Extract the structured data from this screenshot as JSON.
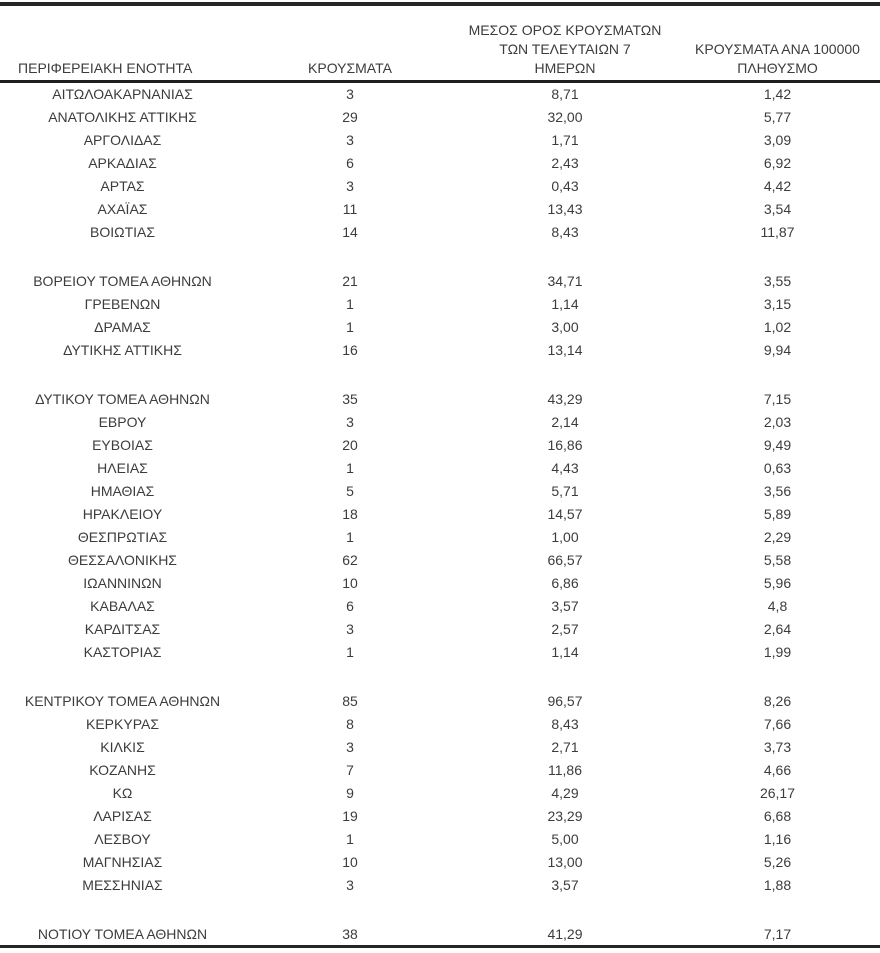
{
  "page": {
    "background_color": "#ffffff",
    "text_color": "#3c3c3c",
    "rule_color": "#262626"
  },
  "table": {
    "column_headers": [
      {
        "id": "region",
        "lines": [
          "ΠΕΡΙΦΕΡΕΙΑΚΗ ΕΝΟΤΗΤΑ"
        ]
      },
      {
        "id": "cases",
        "lines": [
          "ΚΡΟΥΣΜΑΤΑ"
        ]
      },
      {
        "id": "avg7",
        "lines": [
          "ΜΕΣΟΣ ΟΡΟΣ ΚΡΟΥΣΜΑΤΩΝ",
          "ΤΩΝ ΤΕΛΕΥΤΑΙΩΝ 7",
          "ΗΜΕΡΩΝ"
        ]
      },
      {
        "id": "per100k",
        "lines": [
          "ΚΡΟΥΣΜΑΤΑ ΑΝΑ 100000",
          "ΠΛΗΘΥΣΜΟ"
        ]
      }
    ],
    "groups": [
      {
        "rows": [
          {
            "region": "ΑΙΤΩΛΟΑΚΑΡΝΑΝΙΑΣ",
            "cases": "3",
            "avg7": "8,71",
            "per100k": "1,42"
          },
          {
            "region": "ΑΝΑΤΟΛΙΚΗΣ ΑΤΤΙΚΗΣ",
            "cases": "29",
            "avg7": "32,00",
            "per100k": "5,77"
          },
          {
            "region": "ΑΡΓΟΛΙΔΑΣ",
            "cases": "3",
            "avg7": "1,71",
            "per100k": "3,09"
          },
          {
            "region": "ΑΡΚΑΔΙΑΣ",
            "cases": "6",
            "avg7": "2,43",
            "per100k": "6,92"
          },
          {
            "region": "ΑΡΤΑΣ",
            "cases": "3",
            "avg7": "0,43",
            "per100k": "4,42"
          },
          {
            "region": "ΑΧΑΪΑΣ",
            "cases": "11",
            "avg7": "13,43",
            "per100k": "3,54"
          },
          {
            "region": "ΒΟΙΩΤΙΑΣ",
            "cases": "14",
            "avg7": "8,43",
            "per100k": "11,87"
          }
        ]
      },
      {
        "rows": [
          {
            "region": "ΒΟΡΕΙΟΥ ΤΟΜΕΑ ΑΘΗΝΩΝ",
            "cases": "21",
            "avg7": "34,71",
            "per100k": "3,55"
          },
          {
            "region": "ΓΡΕΒΕΝΩΝ",
            "cases": "1",
            "avg7": "1,14",
            "per100k": "3,15"
          },
          {
            "region": "ΔΡΑΜΑΣ",
            "cases": "1",
            "avg7": "3,00",
            "per100k": "1,02"
          },
          {
            "region": "ΔΥΤΙΚΗΣ ΑΤΤΙΚΗΣ",
            "cases": "16",
            "avg7": "13,14",
            "per100k": "9,94"
          }
        ]
      },
      {
        "rows": [
          {
            "region": "ΔΥΤΙΚΟΥ ΤΟΜΕΑ ΑΘΗΝΩΝ",
            "cases": "35",
            "avg7": "43,29",
            "per100k": "7,15"
          },
          {
            "region": "ΕΒΡΟΥ",
            "cases": "3",
            "avg7": "2,14",
            "per100k": "2,03"
          },
          {
            "region": "ΕΥΒΟΙΑΣ",
            "cases": "20",
            "avg7": "16,86",
            "per100k": "9,49"
          },
          {
            "region": "ΗΛΕΙΑΣ",
            "cases": "1",
            "avg7": "4,43",
            "per100k": "0,63"
          },
          {
            "region": "ΗΜΑΘΙΑΣ",
            "cases": "5",
            "avg7": "5,71",
            "per100k": "3,56"
          },
          {
            "region": "ΗΡΑΚΛΕΙΟΥ",
            "cases": "18",
            "avg7": "14,57",
            "per100k": "5,89"
          },
          {
            "region": "ΘΕΣΠΡΩΤΙΑΣ",
            "cases": "1",
            "avg7": "1,00",
            "per100k": "2,29"
          },
          {
            "region": "ΘΕΣΣΑΛΟΝΙΚΗΣ",
            "cases": "62",
            "avg7": "66,57",
            "per100k": "5,58"
          },
          {
            "region": "ΙΩΑΝΝΙΝΩΝ",
            "cases": "10",
            "avg7": "6,86",
            "per100k": "5,96"
          },
          {
            "region": "ΚΑΒΑΛΑΣ",
            "cases": "6",
            "avg7": "3,57",
            "per100k": "4,8"
          },
          {
            "region": "ΚΑΡΔΙΤΣΑΣ",
            "cases": "3",
            "avg7": "2,57",
            "per100k": "2,64"
          },
          {
            "region": "ΚΑΣΤΟΡΙΑΣ",
            "cases": "1",
            "avg7": "1,14",
            "per100k": "1,99"
          }
        ]
      },
      {
        "rows": [
          {
            "region": "ΚΕΝΤΡΙΚΟΥ ΤΟΜΕΑ ΑΘΗΝΩΝ",
            "cases": "85",
            "avg7": "96,57",
            "per100k": "8,26"
          },
          {
            "region": "ΚΕΡΚΥΡΑΣ",
            "cases": "8",
            "avg7": "8,43",
            "per100k": "7,66"
          },
          {
            "region": "ΚΙΛΚΙΣ",
            "cases": "3",
            "avg7": "2,71",
            "per100k": "3,73"
          },
          {
            "region": "ΚΟΖΑΝΗΣ",
            "cases": "7",
            "avg7": "11,86",
            "per100k": "4,66"
          },
          {
            "region": "ΚΩ",
            "cases": "9",
            "avg7": "4,29",
            "per100k": "26,17"
          },
          {
            "region": "ΛΑΡΙΣΑΣ",
            "cases": "19",
            "avg7": "23,29",
            "per100k": "6,68"
          },
          {
            "region": "ΛΕΣΒΟΥ",
            "cases": "1",
            "avg7": "5,00",
            "per100k": "1,16"
          },
          {
            "region": "ΜΑΓΝΗΣΙΑΣ",
            "cases": "10",
            "avg7": "13,00",
            "per100k": "5,26"
          },
          {
            "region": "ΜΕΣΣΗΝΙΑΣ",
            "cases": "3",
            "avg7": "3,57",
            "per100k": "1,88"
          }
        ]
      },
      {
        "rows": [
          {
            "region": "ΝΟΤΙΟΥ ΤΟΜΕΑ ΑΘΗΝΩΝ",
            "cases": "38",
            "avg7": "41,29",
            "per100k": "7,17"
          }
        ]
      }
    ]
  }
}
